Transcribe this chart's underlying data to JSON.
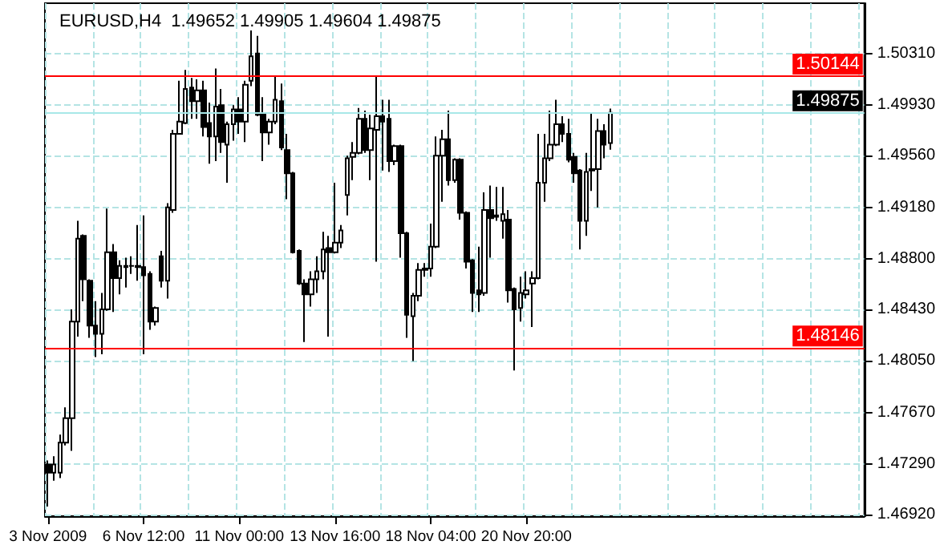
{
  "chart_data": {
    "type": "candlestick",
    "title": "EURUSD,H4  1.49652 1.49905 1.49604 1.49875",
    "color": "#000000",
    "categories": [
      "3 Nov 2009",
      null,
      null,
      null,
      null,
      null,
      null,
      null,
      null,
      null,
      null,
      null,
      null,
      null,
      null,
      null,
      "6 Nov 12:00",
      null,
      null,
      null,
      null,
      null,
      null,
      null,
      null,
      null,
      null,
      null,
      null,
      null,
      null,
      null,
      "11 Nov 00:00",
      null,
      null,
      null,
      null,
      null,
      null,
      null,
      null,
      null,
      null,
      null,
      null,
      null,
      null,
      null,
      "13 Nov 16:00",
      null,
      null,
      null,
      null,
      null,
      null,
      null,
      null,
      null,
      null,
      null,
      null,
      null,
      null,
      null,
      "18 Nov 04:00",
      null,
      null,
      null,
      null,
      null,
      null,
      null,
      null,
      null,
      null,
      null,
      null,
      null,
      null,
      null,
      "20 Nov 20:00",
      null,
      null,
      null,
      null,
      null,
      null,
      null,
      null,
      null,
      null,
      null,
      null,
      null,
      null,
      null,
      null,
      null,
      null,
      null,
      null,
      null,
      null,
      null,
      null,
      null,
      null,
      null,
      null,
      null,
      null,
      null,
      null,
      null,
      null,
      null,
      null,
      null,
      null,
      null,
      null,
      null,
      null,
      null,
      null,
      null,
      null,
      null,
      null,
      null,
      null,
      null,
      null,
      null,
      null,
      null,
      null
    ],
    "ohlc": [
      [
        1.4729,
        1.4732,
        1.4698,
        1.4723
      ],
      [
        1.4723,
        1.4735,
        1.4717,
        1.4729
      ],
      [
        1.4723,
        1.4751,
        1.4719,
        1.4745
      ],
      [
        1.4745,
        1.4771,
        1.4743,
        1.4763
      ],
      [
        1.4763,
        1.4843,
        1.4739,
        1.4834
      ],
      [
        1.4834,
        1.4908,
        1.4823,
        1.4895
      ],
      [
        1.4897,
        1.4898,
        1.4849,
        1.4865
      ],
      [
        1.4864,
        1.4865,
        1.4822,
        1.4831
      ],
      [
        1.4831,
        1.4849,
        1.4808,
        1.4825
      ],
      [
        1.4825,
        1.4855,
        1.481,
        1.4843
      ],
      [
        1.4843,
        1.4917,
        1.4842,
        1.4885
      ],
      [
        1.4885,
        1.4891,
        1.4841,
        1.4866
      ],
      [
        1.4866,
        1.4879,
        1.4854,
        1.4875
      ],
      [
        1.4874,
        1.4881,
        1.4859,
        1.4875
      ],
      [
        1.4875,
        1.4882,
        1.4869,
        1.4875
      ],
      [
        1.4875,
        1.4905,
        1.4864,
        1.4874
      ],
      [
        1.4874,
        1.4912,
        1.481,
        1.4868
      ],
      [
        1.4869,
        1.4871,
        1.4828,
        1.4834
      ],
      [
        1.4834,
        1.4845,
        1.4831,
        1.4844
      ],
      [
        1.4882,
        1.4886,
        1.4859,
        1.4864
      ],
      [
        1.4864,
        1.4921,
        1.4851,
        1.4918
      ],
      [
        1.4916,
        1.4975,
        1.4914,
        1.4972
      ],
      [
        1.4972,
        1.5011,
        1.4972,
        1.4981
      ],
      [
        1.498,
        1.5019,
        1.4979,
        1.5005
      ],
      [
        1.5006,
        1.5013,
        1.4983,
        1.4996
      ],
      [
        1.4996,
        1.5012,
        1.4983,
        1.5004
      ],
      [
        1.5004,
        1.5011,
        1.497,
        1.4977
      ],
      [
        1.498,
        1.4995,
        1.495,
        1.497
      ],
      [
        1.497,
        1.502,
        1.4952,
        1.4992
      ],
      [
        1.4993,
        1.5005,
        1.4958,
        1.4966
      ],
      [
        1.4964,
        1.4981,
        1.4936,
        1.4979
      ],
      [
        1.4979,
        1.4993,
        1.4967,
        1.499
      ],
      [
        1.499,
        1.4999,
        1.4972,
        1.4981
      ],
      [
        1.4981,
        1.5011,
        1.4966,
        1.5008
      ],
      [
        1.5011,
        1.5048,
        1.5007,
        1.5029
      ],
      [
        1.5031,
        1.5044,
        1.4985,
        1.4986
      ],
      [
        1.4987,
        1.4999,
        1.4952,
        1.4973
      ],
      [
        1.4973,
        1.4983,
        1.4964,
        1.4981
      ],
      [
        1.4981,
        1.5015,
        1.4979,
        1.4997
      ],
      [
        1.4996,
        1.5009,
        1.496,
        1.4962
      ],
      [
        1.496,
        1.4972,
        1.4924,
        1.4943
      ],
      [
        1.4943,
        1.4944,
        1.4884,
        1.4885
      ],
      [
        1.4886,
        1.4887,
        1.4861,
        1.4862
      ],
      [
        1.4862,
        1.4865,
        1.4819,
        1.4854
      ],
      [
        1.4854,
        1.4871,
        1.4845,
        1.4865
      ],
      [
        1.4865,
        1.4882,
        1.4855,
        1.4871
      ],
      [
        1.4871,
        1.49,
        1.4865,
        1.4887
      ],
      [
        1.4888,
        1.4897,
        1.4823,
        1.4885
      ],
      [
        1.4885,
        1.4936,
        1.4884,
        1.4892
      ],
      [
        1.4892,
        1.4905,
        1.4888,
        1.4901
      ],
      [
        1.4927,
        1.4956,
        1.4912,
        1.4954
      ],
      [
        1.4955,
        1.4966,
        1.4938,
        1.4958
      ],
      [
        1.4958,
        1.4991,
        1.4957,
        1.4983
      ],
      [
        1.4983,
        1.4989,
        1.4958,
        1.496
      ],
      [
        1.496,
        1.4986,
        1.4938,
        1.4976
      ],
      [
        1.4975,
        1.5014,
        1.4878,
        1.4985
      ],
      [
        1.4985,
        1.4997,
        1.4945,
        1.4981
      ],
      [
        1.4983,
        1.4997,
        1.4944,
        1.4952
      ],
      [
        1.4952,
        1.4964,
        1.4949,
        1.4963
      ],
      [
        1.4963,
        1.4964,
        1.4881,
        1.4899
      ],
      [
        1.4899,
        1.49,
        1.4822,
        1.4839
      ],
      [
        1.4838,
        1.4855,
        1.4805,
        1.4853
      ],
      [
        1.4853,
        1.4877,
        1.4849,
        1.4872
      ],
      [
        1.4872,
        1.4877,
        1.4867,
        1.4873
      ],
      [
        1.4873,
        1.4906,
        1.4867,
        1.4889
      ],
      [
        1.4889,
        1.497,
        1.4888,
        1.4956
      ],
      [
        1.4956,
        1.4975,
        1.4922,
        1.4968
      ],
      [
        1.4968,
        1.4989,
        1.4934,
        1.4938
      ],
      [
        1.4938,
        1.4954,
        1.4936,
        1.4953
      ],
      [
        1.4953,
        1.4954,
        1.4909,
        1.4914
      ],
      [
        1.4914,
        1.4915,
        1.4873,
        1.4878
      ],
      [
        1.4879,
        1.488,
        1.4841,
        1.4855
      ],
      [
        1.4857,
        1.4889,
        1.4841,
        1.4854
      ],
      [
        1.4855,
        1.4929,
        1.4853,
        1.4916
      ],
      [
        1.4916,
        1.4934,
        1.4881,
        1.491
      ],
      [
        1.4912,
        1.4933,
        1.4908,
        1.4911
      ],
      [
        1.4908,
        1.4933,
        1.4895,
        1.4913
      ],
      [
        1.4909,
        1.4916,
        1.4848,
        1.4857
      ],
      [
        1.4858,
        1.4859,
        1.4798,
        1.4843
      ],
      [
        1.4844,
        1.4867,
        1.4834,
        1.4855
      ],
      [
        1.4854,
        1.4871,
        1.4851,
        1.4857
      ],
      [
        1.4862,
        1.4871,
        1.483,
        1.4866
      ],
      [
        1.4866,
        1.4972,
        1.4865,
        1.4936
      ],
      [
        1.4936,
        1.4972,
        1.4922,
        1.4954
      ],
      [
        1.4954,
        1.4989,
        1.4952,
        1.4964
      ],
      [
        1.4964,
        1.4997,
        1.4963,
        1.4979
      ],
      [
        1.4979,
        1.4985,
        1.4966,
        1.4972
      ],
      [
        1.4972,
        1.4983,
        1.4951,
        1.4953
      ],
      [
        1.4955,
        1.4958,
        1.4936,
        1.4943
      ],
      [
        1.4945,
        1.4946,
        1.4887,
        1.4908
      ],
      [
        1.4908,
        1.4958,
        1.4897,
        1.4944
      ],
      [
        1.4945,
        1.4987,
        1.493,
        1.4946
      ],
      [
        1.4946,
        1.4983,
        1.4918,
        1.4974
      ],
      [
        1.4974,
        1.4979,
        1.4954,
        1.4964
      ],
      [
        1.49652,
        1.49905,
        1.49604,
        1.49875
      ],
      null,
      null,
      null,
      null,
      null,
      null,
      null,
      null,
      null,
      null,
      null,
      null,
      null,
      null,
      null,
      null,
      null,
      null,
      null,
      null,
      null,
      null,
      null,
      null,
      null,
      null,
      null,
      null,
      null,
      null,
      null,
      null,
      null,
      null,
      null,
      null,
      null,
      null,
      null,
      null,
      null,
      null
    ],
    "ylim": [
      1.4691,
      1.5068
    ],
    "yticks": [
      {
        "value": 1.4692,
        "label": "1.46920"
      },
      {
        "value": 1.4729,
        "label": "1.47290"
      },
      {
        "value": 1.4767,
        "label": "1.47670"
      },
      {
        "value": 1.4805,
        "label": "1.48050"
      },
      {
        "value": 1.4843,
        "label": "1.48430"
      },
      {
        "value": 1.488,
        "label": "1.48800"
      },
      {
        "value": 1.4918,
        "label": "1.49180"
      },
      {
        "value": 1.4956,
        "label": "1.49560"
      },
      {
        "value": 1.4993,
        "label": "1.49930"
      },
      {
        "value": 1.5031,
        "label": "1.50310"
      }
    ],
    "ref_lines": [
      {
        "axis": "y",
        "value": 1.50144,
        "label": "1.50144",
        "color": "#ff0000"
      },
      {
        "axis": "y",
        "value": 1.48146,
        "label": "1.48146",
        "color": "#ff0000"
      },
      {
        "axis": "y",
        "value": 1.49875,
        "label": "1.49875",
        "color": "#a8e8e8"
      }
    ],
    "grid": true
  }
}
